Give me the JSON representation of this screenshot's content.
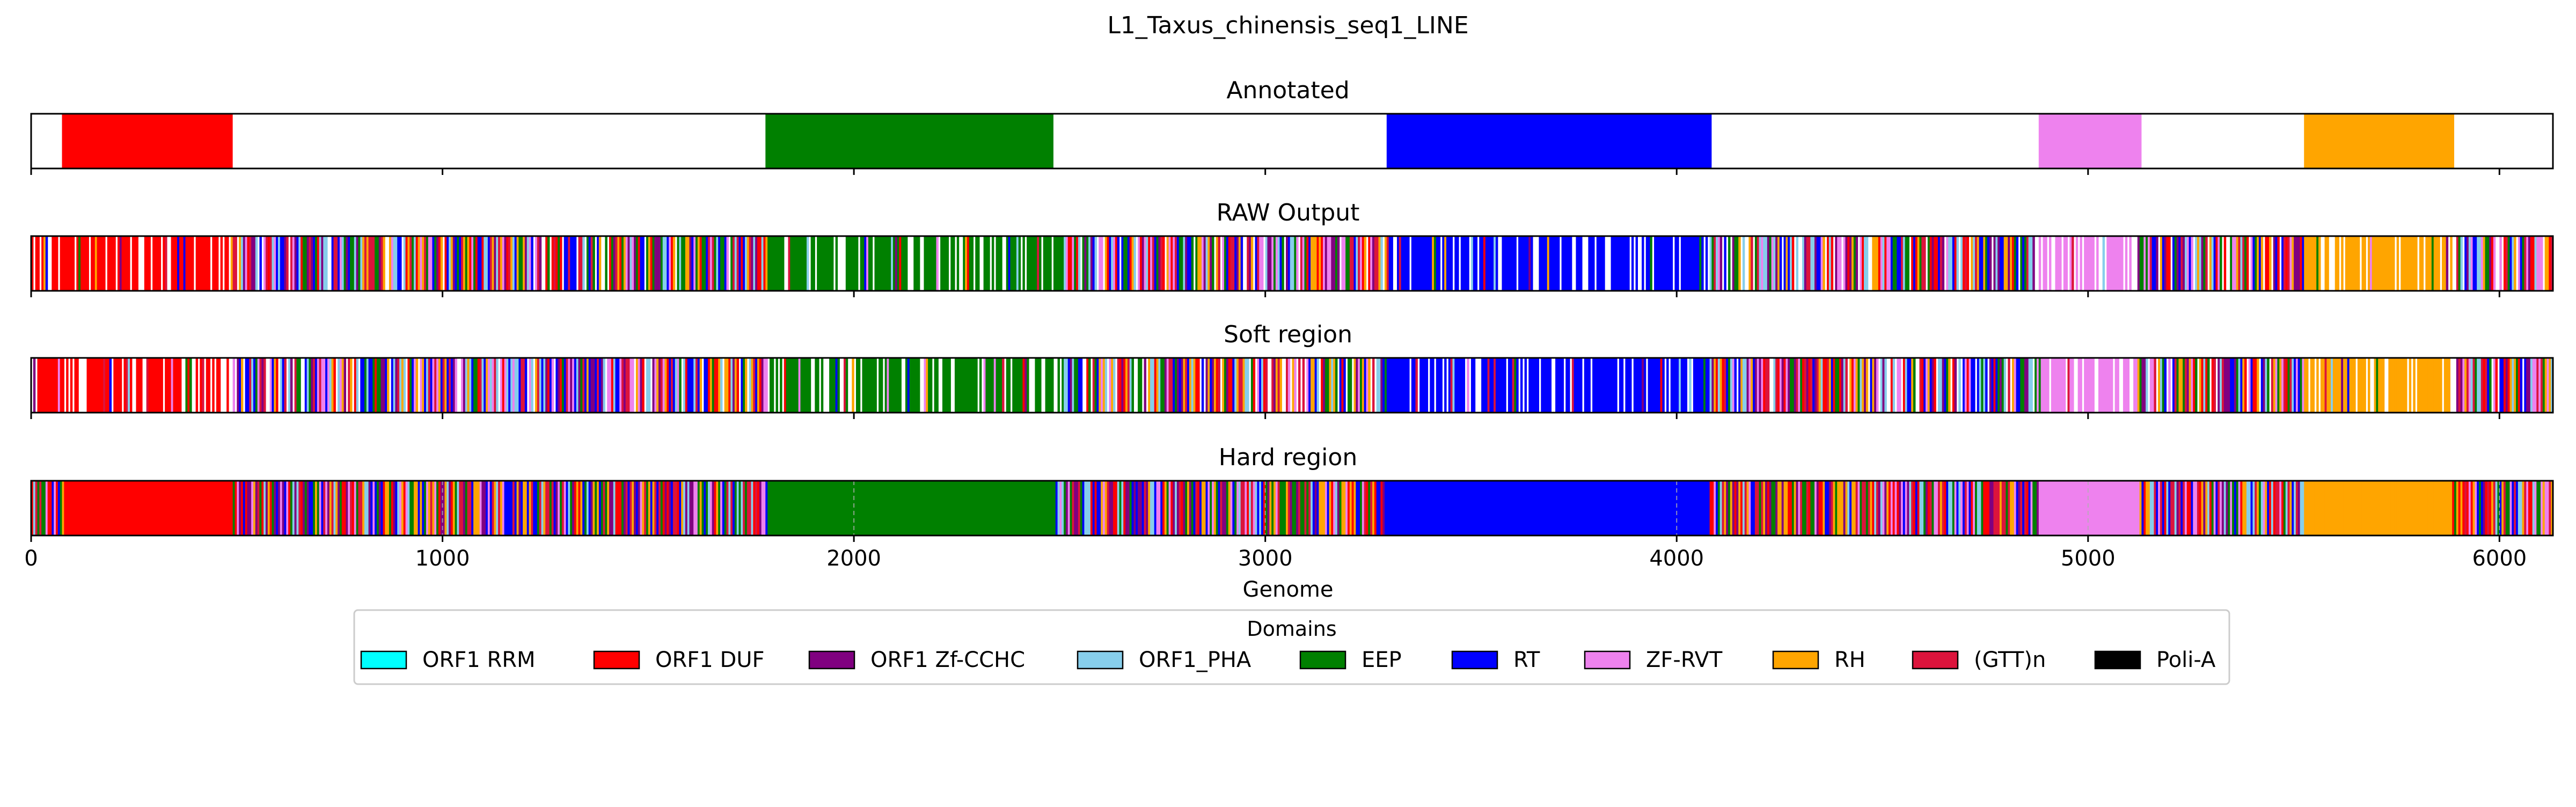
{
  "chart_data": {
    "type": "bar",
    "title": "L1_Taxus_chinensis_seq1_LINE",
    "xlabel": "Genome",
    "xlim": [
      0,
      6130
    ],
    "xticks": [
      0,
      1000,
      2000,
      3000,
      4000,
      5000,
      6000
    ],
    "tick_labels": [
      "0",
      "1000",
      "2000",
      "3000",
      "4000",
      "5000",
      "6000"
    ],
    "domains": [
      {
        "name": "ORF1 RRM",
        "color": "#00ffff"
      },
      {
        "name": "ORF1 DUF",
        "color": "#ff0000"
      },
      {
        "name": "ORF1 Zf-CCHC",
        "color": "#800080"
      },
      {
        "name": "ORF1_PHA",
        "color": "#87ceeb"
      },
      {
        "name": "EEP",
        "color": "#008000"
      },
      {
        "name": "RT",
        "color": "#0000ff"
      },
      {
        "name": "ZF-RVT",
        "color": "#ee82ee"
      },
      {
        "name": "RH",
        "color": "#ffa500"
      },
      {
        "name": "(GTT)n",
        "color": "#dc143c"
      },
      {
        "name": "Poli-A",
        "color": "#000000"
      }
    ],
    "legend": {
      "title": "Domains",
      "placement": "lower-center",
      "ncol": 10
    },
    "panels": [
      {
        "title": "Annotated",
        "mode": "annotated",
        "grid": false,
        "segments": [
          {
            "domain": "ORF1 DUF",
            "start": 75,
            "end": 490
          },
          {
            "domain": "EEP",
            "start": 1785,
            "end": 2485
          },
          {
            "domain": "RT",
            "start": 3295,
            "end": 4085
          },
          {
            "domain": "ZF-RVT",
            "start": 4880,
            "end": 5130
          },
          {
            "domain": "RH",
            "start": 5525,
            "end": 5890
          }
        ]
      },
      {
        "title": "RAW Output",
        "mode": "raw",
        "grid": false,
        "core_regions": [
          {
            "domain": "ORF1 DUF",
            "start": 0,
            "end": 490
          },
          {
            "domain": "EEP",
            "start": 1790,
            "end": 2510
          },
          {
            "domain": "RT",
            "start": 3300,
            "end": 4080
          },
          {
            "domain": "ZF-RVT",
            "start": 4880,
            "end": 5120
          },
          {
            "domain": "RH",
            "start": 5525,
            "end": 5890
          }
        ]
      },
      {
        "title": "Soft region",
        "mode": "raw",
        "grid": false,
        "core_regions": [
          {
            "domain": "ORF1 DUF",
            "start": 0,
            "end": 490
          },
          {
            "domain": "EEP",
            "start": 1790,
            "end": 2510
          },
          {
            "domain": "RT",
            "start": 3300,
            "end": 4080
          },
          {
            "domain": "ZF-RVT",
            "start": 4880,
            "end": 5120
          },
          {
            "domain": "RH",
            "start": 5525,
            "end": 5890
          }
        ]
      },
      {
        "title": "Hard region",
        "mode": "hard",
        "grid": true,
        "core_regions": [
          {
            "domain": "ORF1 DUF",
            "start": 80,
            "end": 490
          },
          {
            "domain": "EEP",
            "start": 1790,
            "end": 2490
          },
          {
            "domain": "RT",
            "start": 3290,
            "end": 4080
          },
          {
            "domain": "ZF-RVT",
            "start": 4880,
            "end": 5125
          },
          {
            "domain": "RH",
            "start": 5525,
            "end": 5885
          }
        ]
      }
    ]
  }
}
